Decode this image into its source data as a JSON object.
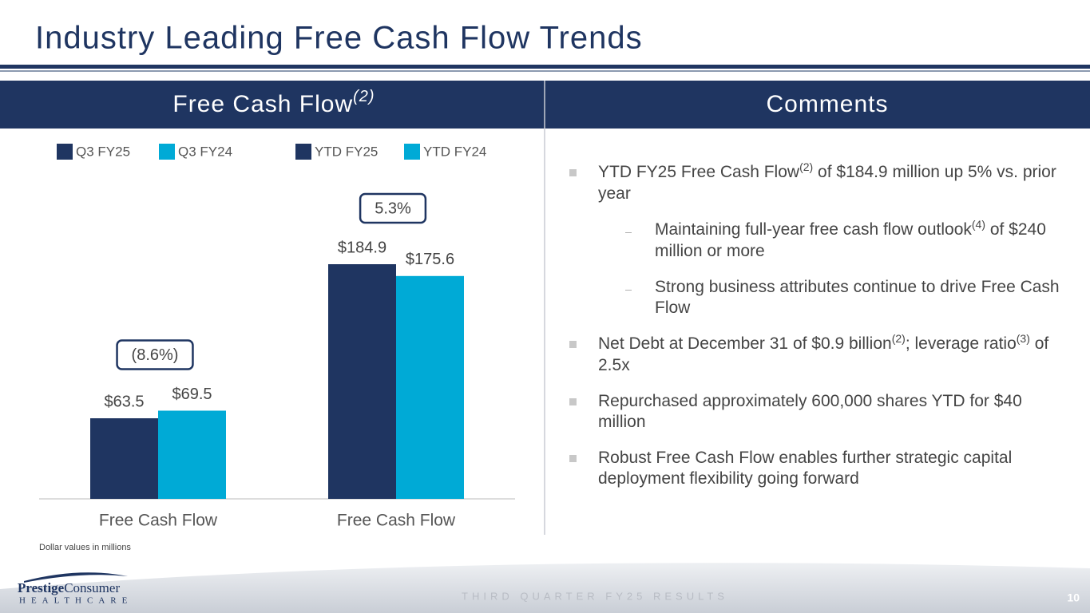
{
  "title": "Industry Leading Free Cash Flow Trends",
  "panels": {
    "left": [
      {
        "text": "Free Cash Flow"
      },
      {
        "text": "(2)",
        "sup": true
      }
    ],
    "right": [
      {
        "text": "Comments"
      }
    ]
  },
  "chart_data": {
    "type": "bar",
    "categories": [
      "Free Cash Flow",
      "Free Cash Flow"
    ],
    "series": [
      {
        "name": "Q3 FY25",
        "color": "#1f3561",
        "values": [
          63.5,
          null
        ],
        "value_labels": [
          "$63.5",
          null
        ]
      },
      {
        "name": "Q3 FY24",
        "color": "#00aad6",
        "values": [
          69.5,
          null
        ],
        "value_labels": [
          "$69.5",
          null
        ]
      },
      {
        "name": "YTD FY25",
        "color": "#1f3561",
        "values": [
          null,
          184.9
        ],
        "value_labels": [
          null,
          "$184.9"
        ]
      },
      {
        "name": "YTD FY24",
        "color": "#00aad6",
        "values": [
          null,
          175.6
        ],
        "value_labels": [
          null,
          "$175.6"
        ]
      }
    ],
    "ylim": [
      0,
      200
    ],
    "annotations": [
      {
        "text": "(8.6%)"
      },
      {
        "text": "5.3%"
      }
    ],
    "note": "Dollar values in millions"
  },
  "comments": [
    {
      "level": 1,
      "parts": [
        {
          "text": "YTD FY25 Free Cash Flow"
        },
        {
          "text": "(2)",
          "sup": true
        },
        {
          "text": " of $184.9 million up 5% vs. prior year"
        }
      ]
    },
    {
      "level": 2,
      "parts": [
        {
          "text": "Maintaining full-year free cash flow outlook"
        },
        {
          "text": "(4)",
          "sup": true
        },
        {
          "text": " of $240 million or more"
        }
      ]
    },
    {
      "level": 2,
      "parts": [
        {
          "text": "Strong business attributes continue to drive Free Cash Flow"
        }
      ]
    },
    {
      "level": 1,
      "parts": [
        {
          "text": "Net Debt at December 31 of $0.9 billion"
        },
        {
          "text": "(2)",
          "sup": true
        },
        {
          "text": "; leverage ratio"
        },
        {
          "text": "(3)",
          "sup": true
        },
        {
          "text": " of 2.5x"
        }
      ]
    },
    {
      "level": 1,
      "parts": [
        {
          "text": "Repurchased approximately 600,000 shares YTD for $40 million"
        }
      ]
    },
    {
      "level": 1,
      "parts": [
        {
          "text": "Robust Free Cash Flow enables further strategic capital deployment flexibility going forward"
        }
      ]
    }
  ],
  "footer": {
    "text": "THIRD QUARTER FY25 RESULTS",
    "page": "10"
  },
  "logo": {
    "name": "Prestige",
    "name2": "Consumer",
    "sub": "HEALTHCARE"
  }
}
